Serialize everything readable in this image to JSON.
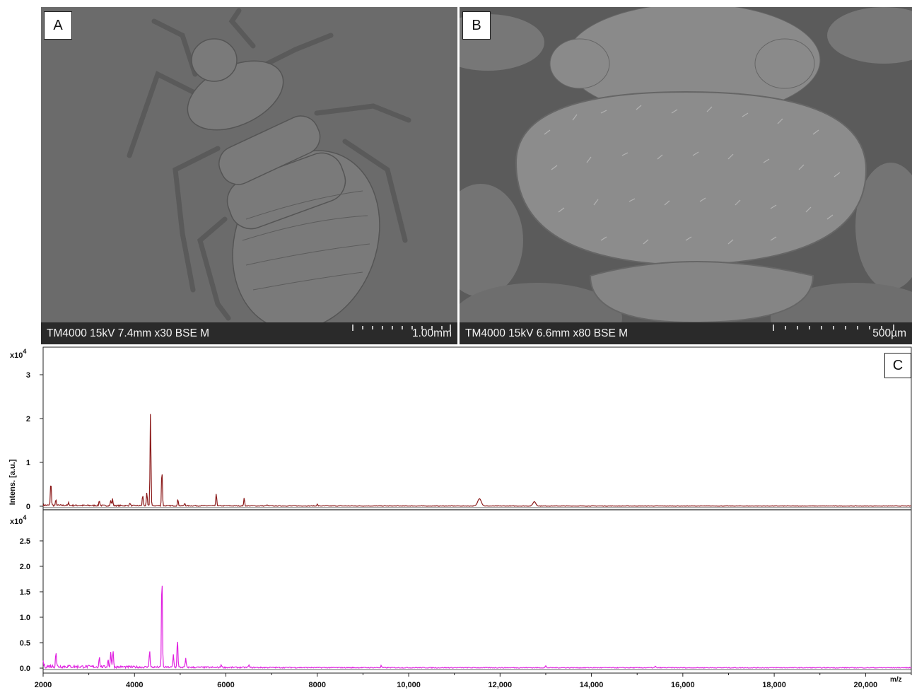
{
  "panels": {
    "A": {
      "letter": "A",
      "meta": "TM4000 15kV 7.4mm x30 BSE M",
      "scale": "1.00mm"
    },
    "B": {
      "letter": "B",
      "meta": "TM4000 15kV 6.6mm x80 BSE M",
      "scale": "500µm"
    }
  },
  "colors": {
    "sem_background": "#6b6b6b",
    "sem_specimen": "#7c7c7c",
    "spectrum_top": "#8b1a1a",
    "spectrum_bottom": "#e020e0"
  },
  "chart_data": {
    "type": "line",
    "panel_letter": "C",
    "x_tick_labels": [
      "2000",
      "4000",
      "6000",
      "8000",
      "10,000",
      "12,000",
      "14,000",
      "16,000",
      "18,000",
      "20,000"
    ],
    "xlabel": "m/z",
    "xlim": [
      2000,
      21000
    ],
    "ylabel": "Intens. [a.u.]",
    "subplots": [
      {
        "exponent_label": "x10",
        "exponent": "4",
        "ylim": [
          0,
          3.5
        ],
        "y_ticks": [
          0,
          1,
          2,
          3
        ],
        "y_tick_labels": [
          "0",
          "1",
          "2",
          "3"
        ],
        "baseline": 0.03,
        "peaks": [
          {
            "mz": 2170,
            "intensity": 0.55
          },
          {
            "mz": 2280,
            "intensity": 0.12
          },
          {
            "mz": 2560,
            "intensity": 0.06
          },
          {
            "mz": 3230,
            "intensity": 0.12
          },
          {
            "mz": 3480,
            "intensity": 0.12
          },
          {
            "mz": 3520,
            "intensity": 0.15
          },
          {
            "mz": 3900,
            "intensity": 0.06
          },
          {
            "mz": 4180,
            "intensity": 0.25
          },
          {
            "mz": 4270,
            "intensity": 0.3
          },
          {
            "mz": 4350,
            "intensity": 2.15
          },
          {
            "mz": 4600,
            "intensity": 0.85
          },
          {
            "mz": 4950,
            "intensity": 0.15
          },
          {
            "mz": 5100,
            "intensity": 0.06
          },
          {
            "mz": 5790,
            "intensity": 0.28
          },
          {
            "mz": 6400,
            "intensity": 0.18
          },
          {
            "mz": 6900,
            "intensity": 0.03
          },
          {
            "mz": 8000,
            "intensity": 0.04
          },
          {
            "mz": 11550,
            "intensity": 0.17,
            "width": 55
          },
          {
            "mz": 12750,
            "intensity": 0.1,
            "width": 45
          }
        ]
      },
      {
        "exponent_label": "x10",
        "exponent": "4",
        "ylim": [
          0,
          3.0
        ],
        "y_ticks": [
          0,
          0.5,
          1.0,
          1.5,
          2.0,
          2.5
        ],
        "y_tick_labels": [
          "0.0",
          "0.5",
          "1.0",
          "1.5",
          "2.0",
          "2.5"
        ],
        "baseline": 0.05,
        "peaks": [
          {
            "mz": 2000,
            "intensity": 0.1
          },
          {
            "mz": 2280,
            "intensity": 0.3
          },
          {
            "mz": 3230,
            "intensity": 0.2
          },
          {
            "mz": 3420,
            "intensity": 0.15
          },
          {
            "mz": 3480,
            "intensity": 0.3
          },
          {
            "mz": 3530,
            "intensity": 0.35
          },
          {
            "mz": 4330,
            "intensity": 0.35
          },
          {
            "mz": 4600,
            "intensity": 1.9
          },
          {
            "mz": 4850,
            "intensity": 0.25
          },
          {
            "mz": 4940,
            "intensity": 0.58
          },
          {
            "mz": 5120,
            "intensity": 0.18
          },
          {
            "mz": 5900,
            "intensity": 0.06
          },
          {
            "mz": 6500,
            "intensity": 0.05
          },
          {
            "mz": 9400,
            "intensity": 0.04
          },
          {
            "mz": 13000,
            "intensity": 0.04
          },
          {
            "mz": 15400,
            "intensity": 0.03
          }
        ]
      }
    ]
  }
}
